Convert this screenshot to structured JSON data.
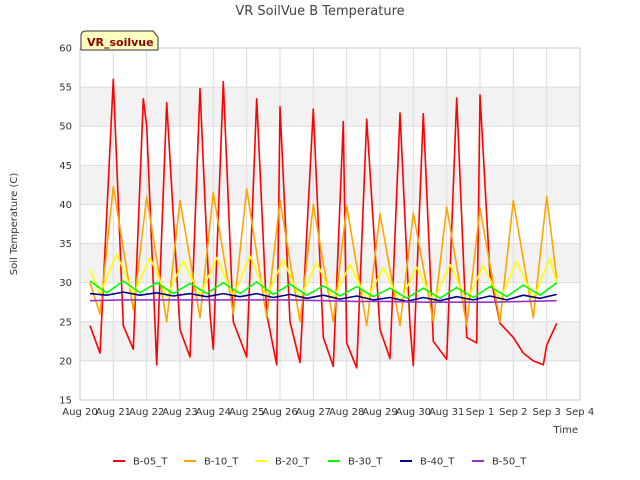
{
  "chart_data": {
    "type": "line",
    "title": "VR SoilVue B Temperature",
    "xlabel": "Time",
    "ylabel": "Soil Temperature (C)",
    "station_label": "VR_soilvue",
    "ylim": [
      15,
      60
    ],
    "yticks": [
      15,
      20,
      25,
      30,
      35,
      40,
      45,
      50,
      55,
      60
    ],
    "xlim": [
      0,
      15
    ],
    "xtick_labels": [
      "Aug 20",
      "Aug 21",
      "Aug 22",
      "Aug 23",
      "Aug 24",
      "Aug 25",
      "Aug 26",
      "Aug 27",
      "Aug 28",
      "Aug 29",
      "Aug 30",
      "Aug 31",
      "Sep 1",
      "Sep 2",
      "Sep 3",
      "Sep 4"
    ],
    "grid": true,
    "legend_position": "bottom",
    "series": [
      {
        "name": "B-05_T",
        "color": "#ff0000",
        "x": [
          0.3,
          0.6,
          1.0,
          1.3,
          1.6,
          1.9,
          2.0,
          2.3,
          2.6,
          3.0,
          3.3,
          3.6,
          3.9,
          4.0,
          4.3,
          4.6,
          5.0,
          5.3,
          5.6,
          5.9,
          6.0,
          6.3,
          6.6,
          7.0,
          7.3,
          7.6,
          7.9,
          8.0,
          8.3,
          8.6,
          9.0,
          9.3,
          9.6,
          9.9,
          10.0,
          10.3,
          10.6,
          11.0,
          11.3,
          11.6,
          11.9,
          12.0,
          12.3,
          12.6,
          13.0,
          13.3,
          13.6,
          13.9,
          14.0,
          14.3
        ],
        "y": [
          24.5,
          21,
          56,
          24.5,
          21.5,
          53.5,
          50,
          19.5,
          53,
          24,
          20.5,
          54.8,
          26,
          21.5,
          55.7,
          25,
          20.5,
          53.5,
          26,
          19.5,
          52.5,
          25,
          19.8,
          52.2,
          23,
          19.3,
          50.6,
          22.3,
          19.1,
          50.9,
          24,
          20.3,
          51.7,
          24.5,
          19.4,
          51.6,
          22.5,
          20.2,
          53.6,
          23,
          22.3,
          54,
          31,
          24.8,
          23,
          21,
          20,
          19.5,
          22,
          24.8
        ]
      },
      {
        "name": "B-10_T",
        "color": "#ffa500",
        "x": [
          0.3,
          0.6,
          1.0,
          1.6,
          2.0,
          2.6,
          3.0,
          3.6,
          4.0,
          4.6,
          5.0,
          5.6,
          6.0,
          6.6,
          7.0,
          7.6,
          8.0,
          8.6,
          9.0,
          9.6,
          10.0,
          10.6,
          11.0,
          11.6,
          12.0,
          12.6,
          13.0,
          13.6,
          14.0,
          14.3
        ],
        "y": [
          30,
          26,
          42.3,
          26.5,
          41,
          25,
          40.5,
          25.5,
          41.5,
          26,
          42,
          25.5,
          40.5,
          25,
          40,
          25,
          39.8,
          24.5,
          38.8,
          24.5,
          38.9,
          25,
          39.7,
          24.5,
          39.5,
          25,
          40.5,
          25.5,
          41,
          30.5
        ]
      },
      {
        "name": "B-20_T",
        "color": "#ffff00",
        "x": [
          0.3,
          0.6,
          1.1,
          1.6,
          2.1,
          2.6,
          3.1,
          3.6,
          4.1,
          4.6,
          5.1,
          5.6,
          6.1,
          6.6,
          7.1,
          7.6,
          8.1,
          8.6,
          9.1,
          9.6,
          10.1,
          10.6,
          11.1,
          11.6,
          12.1,
          12.6,
          13.1,
          13.6,
          14.1,
          14.3
        ],
        "y": [
          31.7,
          28.5,
          33.7,
          28.5,
          33.2,
          28.2,
          32.8,
          28.3,
          33.2,
          28.3,
          33.4,
          28.3,
          32.9,
          28,
          32.6,
          27.9,
          32.3,
          27.8,
          31.9,
          27.5,
          32,
          27.6,
          32.3,
          27.7,
          32.2,
          27.8,
          32.7,
          28,
          33.1,
          30
        ]
      },
      {
        "name": "B-30_T",
        "color": "#00ff00",
        "x": [
          0.3,
          0.8,
          1.3,
          1.8,
          2.3,
          2.8,
          3.3,
          3.8,
          4.3,
          4.8,
          5.3,
          5.8,
          6.3,
          6.8,
          7.3,
          7.8,
          8.3,
          8.8,
          9.3,
          9.8,
          10.3,
          10.8,
          11.3,
          11.8,
          12.3,
          12.8,
          13.3,
          13.8,
          14.3
        ],
        "y": [
          30.2,
          28.7,
          30.2,
          28.7,
          30,
          28.6,
          29.9,
          28.6,
          30,
          28.6,
          30.1,
          28.5,
          29.8,
          28.4,
          29.6,
          28.3,
          29.5,
          28.2,
          29.3,
          28,
          29.3,
          28,
          29.4,
          28.1,
          29.5,
          28.2,
          29.7,
          28.4,
          30
        ]
      },
      {
        "name": "B-40_T",
        "color": "#00008b",
        "x": [
          0.3,
          0.8,
          1.3,
          1.8,
          2.3,
          2.8,
          3.3,
          3.8,
          4.3,
          4.8,
          5.3,
          5.8,
          6.3,
          6.8,
          7.3,
          7.8,
          8.3,
          8.8,
          9.3,
          9.8,
          10.3,
          10.8,
          11.3,
          11.8,
          12.3,
          12.8,
          13.3,
          13.8,
          14.3
        ],
        "y": [
          28.6,
          28.4,
          28.8,
          28.4,
          28.7,
          28.3,
          28.6,
          28.2,
          28.6,
          28.2,
          28.6,
          28.1,
          28.5,
          28,
          28.4,
          27.9,
          28.3,
          27.8,
          28.1,
          27.6,
          28.1,
          27.7,
          28.2,
          27.8,
          28.3,
          27.8,
          28.4,
          28,
          28.5
        ]
      },
      {
        "name": "B-50_T",
        "color": "#9932cc",
        "x": [
          0.3,
          1.3,
          2.3,
          3.3,
          4.3,
          5.3,
          6.3,
          7.3,
          8.3,
          9.3,
          10.3,
          11.3,
          12.3,
          13.3,
          14.3
        ],
        "y": [
          27.7,
          27.8,
          27.8,
          27.8,
          27.8,
          27.8,
          27.8,
          27.7,
          27.6,
          27.6,
          27.5,
          27.5,
          27.5,
          27.6,
          27.7
        ]
      }
    ]
  }
}
